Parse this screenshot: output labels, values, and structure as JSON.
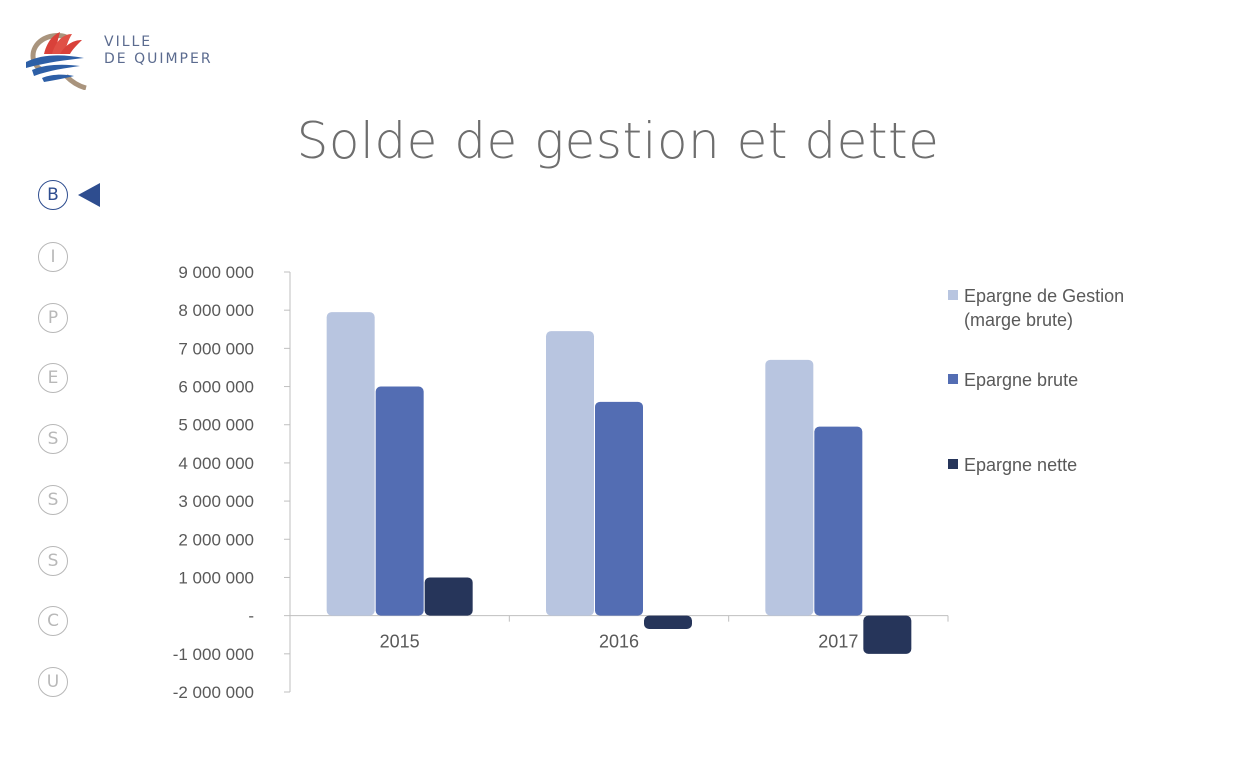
{
  "logo": {
    "line1": "VILLE",
    "line2": "DE QUIMPER",
    "colors": {
      "red": "#d9413a",
      "blue": "#2d5fa6",
      "tan": "#a9947d"
    }
  },
  "nav": {
    "items": [
      {
        "letter": "B",
        "active": true
      },
      {
        "letter": "I",
        "active": false
      },
      {
        "letter": "P",
        "active": false
      },
      {
        "letter": "E",
        "active": false
      },
      {
        "letter": "S",
        "active": false
      },
      {
        "letter": "S",
        "active": false
      },
      {
        "letter": "S",
        "active": false
      },
      {
        "letter": "C",
        "active": false
      },
      {
        "letter": "U",
        "active": false
      }
    ],
    "active_color": "#2e4d8f",
    "inactive_color": "#b8b8b8"
  },
  "chart_data": {
    "type": "bar",
    "title": "Solde de gestion et dette",
    "categories": [
      "2015",
      "2016",
      "2017"
    ],
    "series": [
      {
        "name": "Epargne de Gestion (marge brute)",
        "color": "#b8c5e0",
        "values": [
          7950000,
          7450000,
          6700000
        ]
      },
      {
        "name": "Epargne brute",
        "color": "#536db3",
        "values": [
          6000000,
          5600000,
          4950000
        ]
      },
      {
        "name": "Epargne nette",
        "color": "#26355a",
        "values": [
          1000000,
          -350000,
          -1000000
        ]
      }
    ],
    "ylim": [
      -2000000,
      9000000
    ],
    "yticks": [
      9000000,
      8000000,
      7000000,
      6000000,
      5000000,
      4000000,
      3000000,
      2000000,
      1000000,
      0,
      -1000000,
      -2000000
    ],
    "ytick_labels": [
      "9 000 000",
      "8 000 000",
      "7 000 000",
      "6 000 000",
      "5 000 000",
      "4 000 000",
      "3 000 000",
      "2 000 000",
      "1 000 000",
      "-",
      "-1 000 000",
      "-2 000 000"
    ],
    "legend_position": "right",
    "grid": false
  }
}
